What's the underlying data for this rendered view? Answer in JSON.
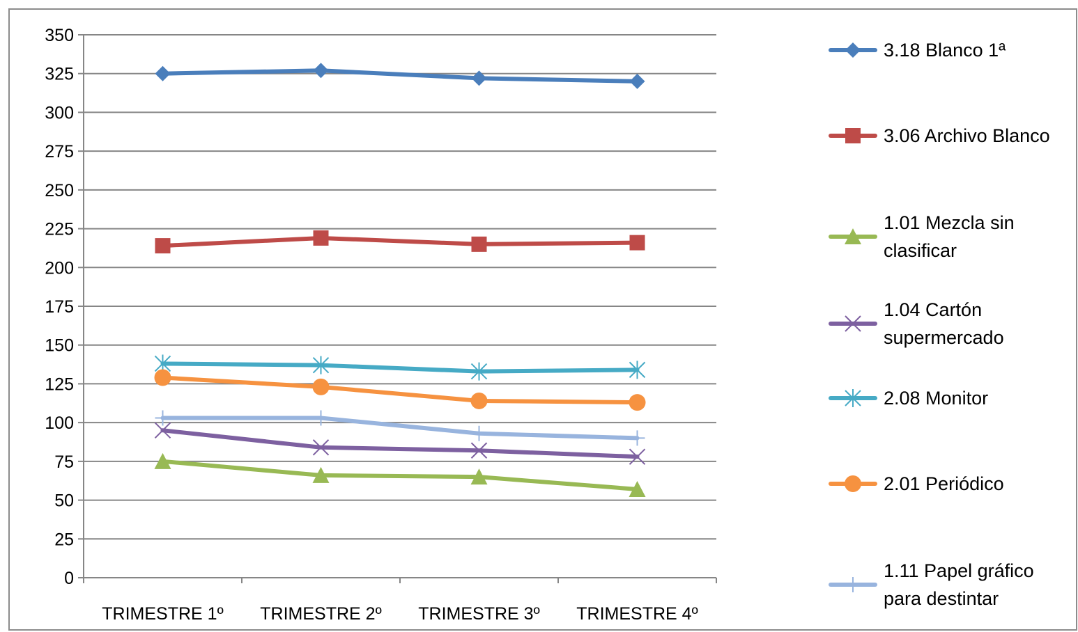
{
  "chart_data": {
    "type": "line",
    "title": "",
    "xlabel": "",
    "ylabel": "",
    "categories": [
      "TRIMESTRE 1º",
      "TRIMESTRE 2º",
      "TRIMESTRE 3º",
      "TRIMESTRE 4º"
    ],
    "ylim": [
      0,
      350
    ],
    "yticks": [
      0,
      25,
      50,
      75,
      100,
      125,
      150,
      175,
      200,
      225,
      250,
      275,
      300,
      325,
      350
    ],
    "grid": true,
    "legend_position": "right",
    "series": [
      {
        "name": "3.18 Blanco 1ª",
        "name_lines": [
          "3.18 Blanco 1ª"
        ],
        "values": [
          325,
          327,
          322,
          320
        ],
        "color": "#4a7ebb",
        "marker": "diamond"
      },
      {
        "name": "3.06 Archivo Blanco",
        "name_lines": [
          "3.06 Archivo Blanco"
        ],
        "values": [
          214,
          219,
          215,
          216
        ],
        "color": "#be4b48",
        "marker": "square"
      },
      {
        "name": "1.01 Mezcla sin clasificar",
        "name_lines": [
          "1.01 Mezcla sin",
          "clasificar"
        ],
        "values": [
          75,
          66,
          65,
          57
        ],
        "color": "#98b954",
        "marker": "triangle"
      },
      {
        "name": "1.04 Cartón supermercado",
        "name_lines": [
          "1.04 Cartón",
          "supermercado"
        ],
        "values": [
          95,
          84,
          82,
          78
        ],
        "color": "#7d60a0",
        "marker": "x"
      },
      {
        "name": "2.08 Monitor",
        "name_lines": [
          "2.08 Monitor"
        ],
        "values": [
          138,
          137,
          133,
          134
        ],
        "color": "#46aac5",
        "marker": "star"
      },
      {
        "name": "2.01 Periódico",
        "name_lines": [
          "2.01 Periódico"
        ],
        "values": [
          129,
          123,
          114,
          113
        ],
        "color": "#f69240",
        "marker": "circle"
      },
      {
        "name": "1.11 Papel gráfico para destintar",
        "name_lines": [
          "1.11 Papel gráfico",
          "para destintar"
        ],
        "values": [
          103,
          103,
          93,
          90
        ],
        "color": "#98b4de",
        "marker": "plus"
      }
    ]
  }
}
